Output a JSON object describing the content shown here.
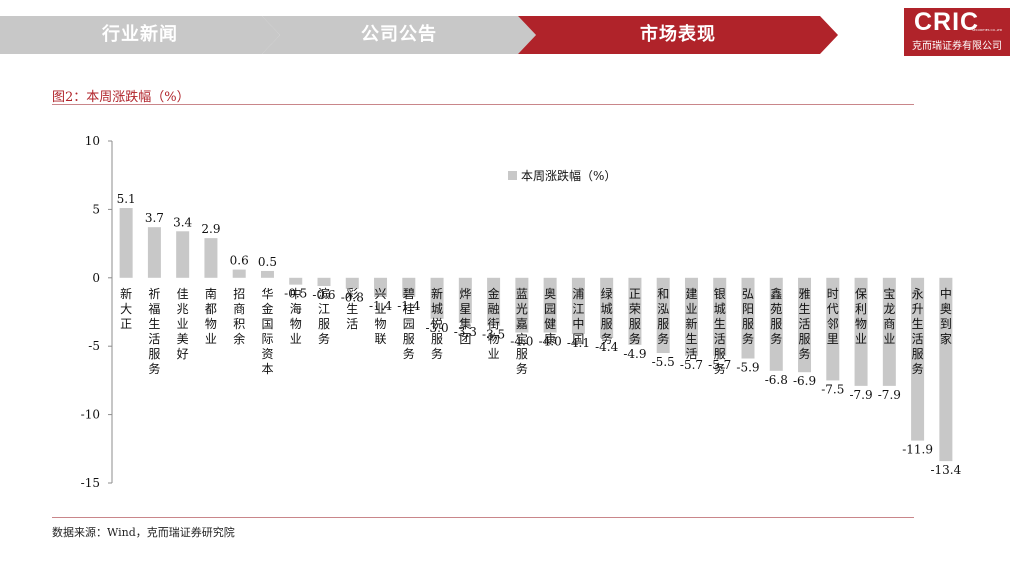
{
  "nav": {
    "tabs": [
      {
        "label": "行业新闻",
        "active": false
      },
      {
        "label": "公司公告",
        "active": false
      },
      {
        "label": "市场表现",
        "active": true
      }
    ],
    "colors": {
      "inactive": "#c8c8c8",
      "active": "#b0232a"
    }
  },
  "logo": {
    "mark": "CRIC",
    "small": "SECURITIES CO.,LTD",
    "name": "克而瑞证券有限公司"
  },
  "figure": {
    "title": "图2：本周涨跌幅（%）",
    "source": "数据来源：Wind，克而瑞证券研究院"
  },
  "chart_data": {
    "type": "bar",
    "title": "",
    "xlabel": "",
    "ylabel": "",
    "ylim": [
      -15,
      10
    ],
    "yticks": [
      10,
      5,
      0,
      -5,
      -10,
      -15
    ],
    "grid": false,
    "legend_position": "top-right",
    "bar_color": "#c8c8c8",
    "categories": [
      "新大正",
      "祈福生活服务",
      "佳兆业美好",
      "南都物业",
      "招商积余",
      "华金国际资本",
      "中海物业",
      "滨江服务",
      "彩生活",
      "兴业物联",
      "碧桂园服务",
      "新城悦服务",
      "烨星集团",
      "金融街物业",
      "蓝光嘉宝服务",
      "奥园健康",
      "浦江中国",
      "绿城服务",
      "正荣服务",
      "和泓服务",
      "建业新生活",
      "银城生活服务",
      "弘阳服务",
      "鑫苑服务",
      "雅生活服务",
      "时代邻里",
      "保利物业",
      "宝龙商业",
      "永升生活服务",
      "中奥到家"
    ],
    "series": [
      {
        "name": "本周涨跌幅（%）",
        "values": [
          5.1,
          3.7,
          3.4,
          2.9,
          0.6,
          0.5,
          -0.5,
          -0.6,
          -0.8,
          -1.4,
          -1.4,
          -3.0,
          -3.3,
          -3.5,
          -4.0,
          -4.0,
          -4.1,
          -4.4,
          -4.9,
          -5.5,
          -5.7,
          -5.7,
          -5.9,
          -6.8,
          -6.9,
          -7.5,
          -7.9,
          -7.9,
          -11.9,
          -13.4
        ],
        "labels": [
          "5.1",
          "3.7",
          "3.4",
          "2.9",
          "0.6",
          "0.5",
          "-0.5",
          "-0.6",
          "-0.8",
          "-1.4",
          "-1.4",
          "-3.0",
          "-3.3",
          "-3.5",
          "-4.0",
          "-4.0",
          "-4.1",
          "-4.4",
          "-4.9",
          "-5.5",
          "-5.7",
          "-5.7",
          "-5.9",
          "-6.8",
          "-6.9",
          "-7.5",
          "-7.9",
          "-7.9",
          "-11.9",
          "-13.4"
        ]
      }
    ]
  }
}
